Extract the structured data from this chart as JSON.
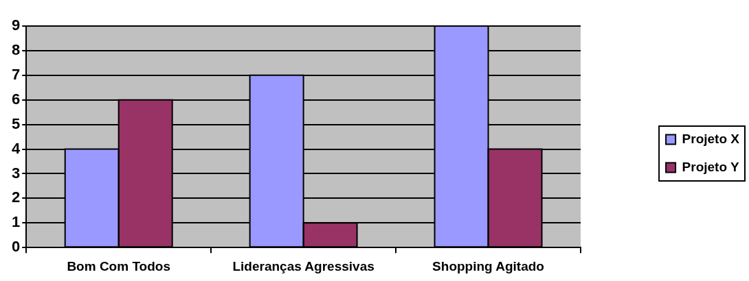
{
  "chart_data": {
    "type": "bar",
    "categories": [
      "Bom Com Todos",
      "Lideranças Agressivas",
      "Shopping Agitado"
    ],
    "series": [
      {
        "name": "Projeto X",
        "color": "#9999ff",
        "values": [
          4,
          7,
          9
        ]
      },
      {
        "name": "Projeto Y",
        "color": "#993366",
        "values": [
          6,
          1,
          4
        ]
      }
    ],
    "ylim": [
      0,
      9
    ],
    "yticks": [
      0,
      1,
      2,
      3,
      4,
      5,
      6,
      7,
      8,
      9
    ],
    "grid": "y",
    "legend": "right"
  }
}
